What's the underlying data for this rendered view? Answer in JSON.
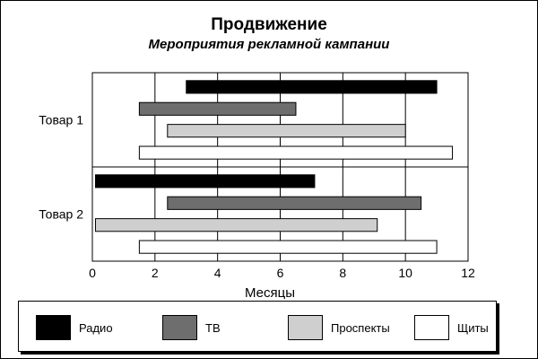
{
  "chart_data": {
    "type": "bar",
    "orientation": "horizontal",
    "title": "Продвижение",
    "subtitle": "Мероприятия рекламной кампании",
    "xlabel": "Месяцы",
    "ylabel": "",
    "xlim": [
      0,
      12
    ],
    "xticks": [
      0,
      2,
      4,
      6,
      8,
      10,
      12
    ],
    "grid": "vertical",
    "categories": [
      "Товар 1",
      "Товар 2"
    ],
    "series": [
      {
        "name": "Радио",
        "color": "#000000",
        "ranges": [
          [
            3.0,
            11.0
          ],
          [
            0.1,
            7.1
          ]
        ]
      },
      {
        "name": "ТВ",
        "color": "#6e6e6e",
        "ranges": [
          [
            1.5,
            6.5
          ],
          [
            2.4,
            10.5
          ]
        ]
      },
      {
        "name": "Проспекты",
        "color": "#cfcfcf",
        "ranges": [
          [
            2.4,
            10.0
          ],
          [
            0.1,
            9.1
          ]
        ]
      },
      {
        "name": "Щиты",
        "color": "#ffffff",
        "ranges": [
          [
            1.5,
            11.5
          ],
          [
            1.5,
            11.0
          ]
        ]
      }
    ],
    "legend_position": "bottom"
  }
}
